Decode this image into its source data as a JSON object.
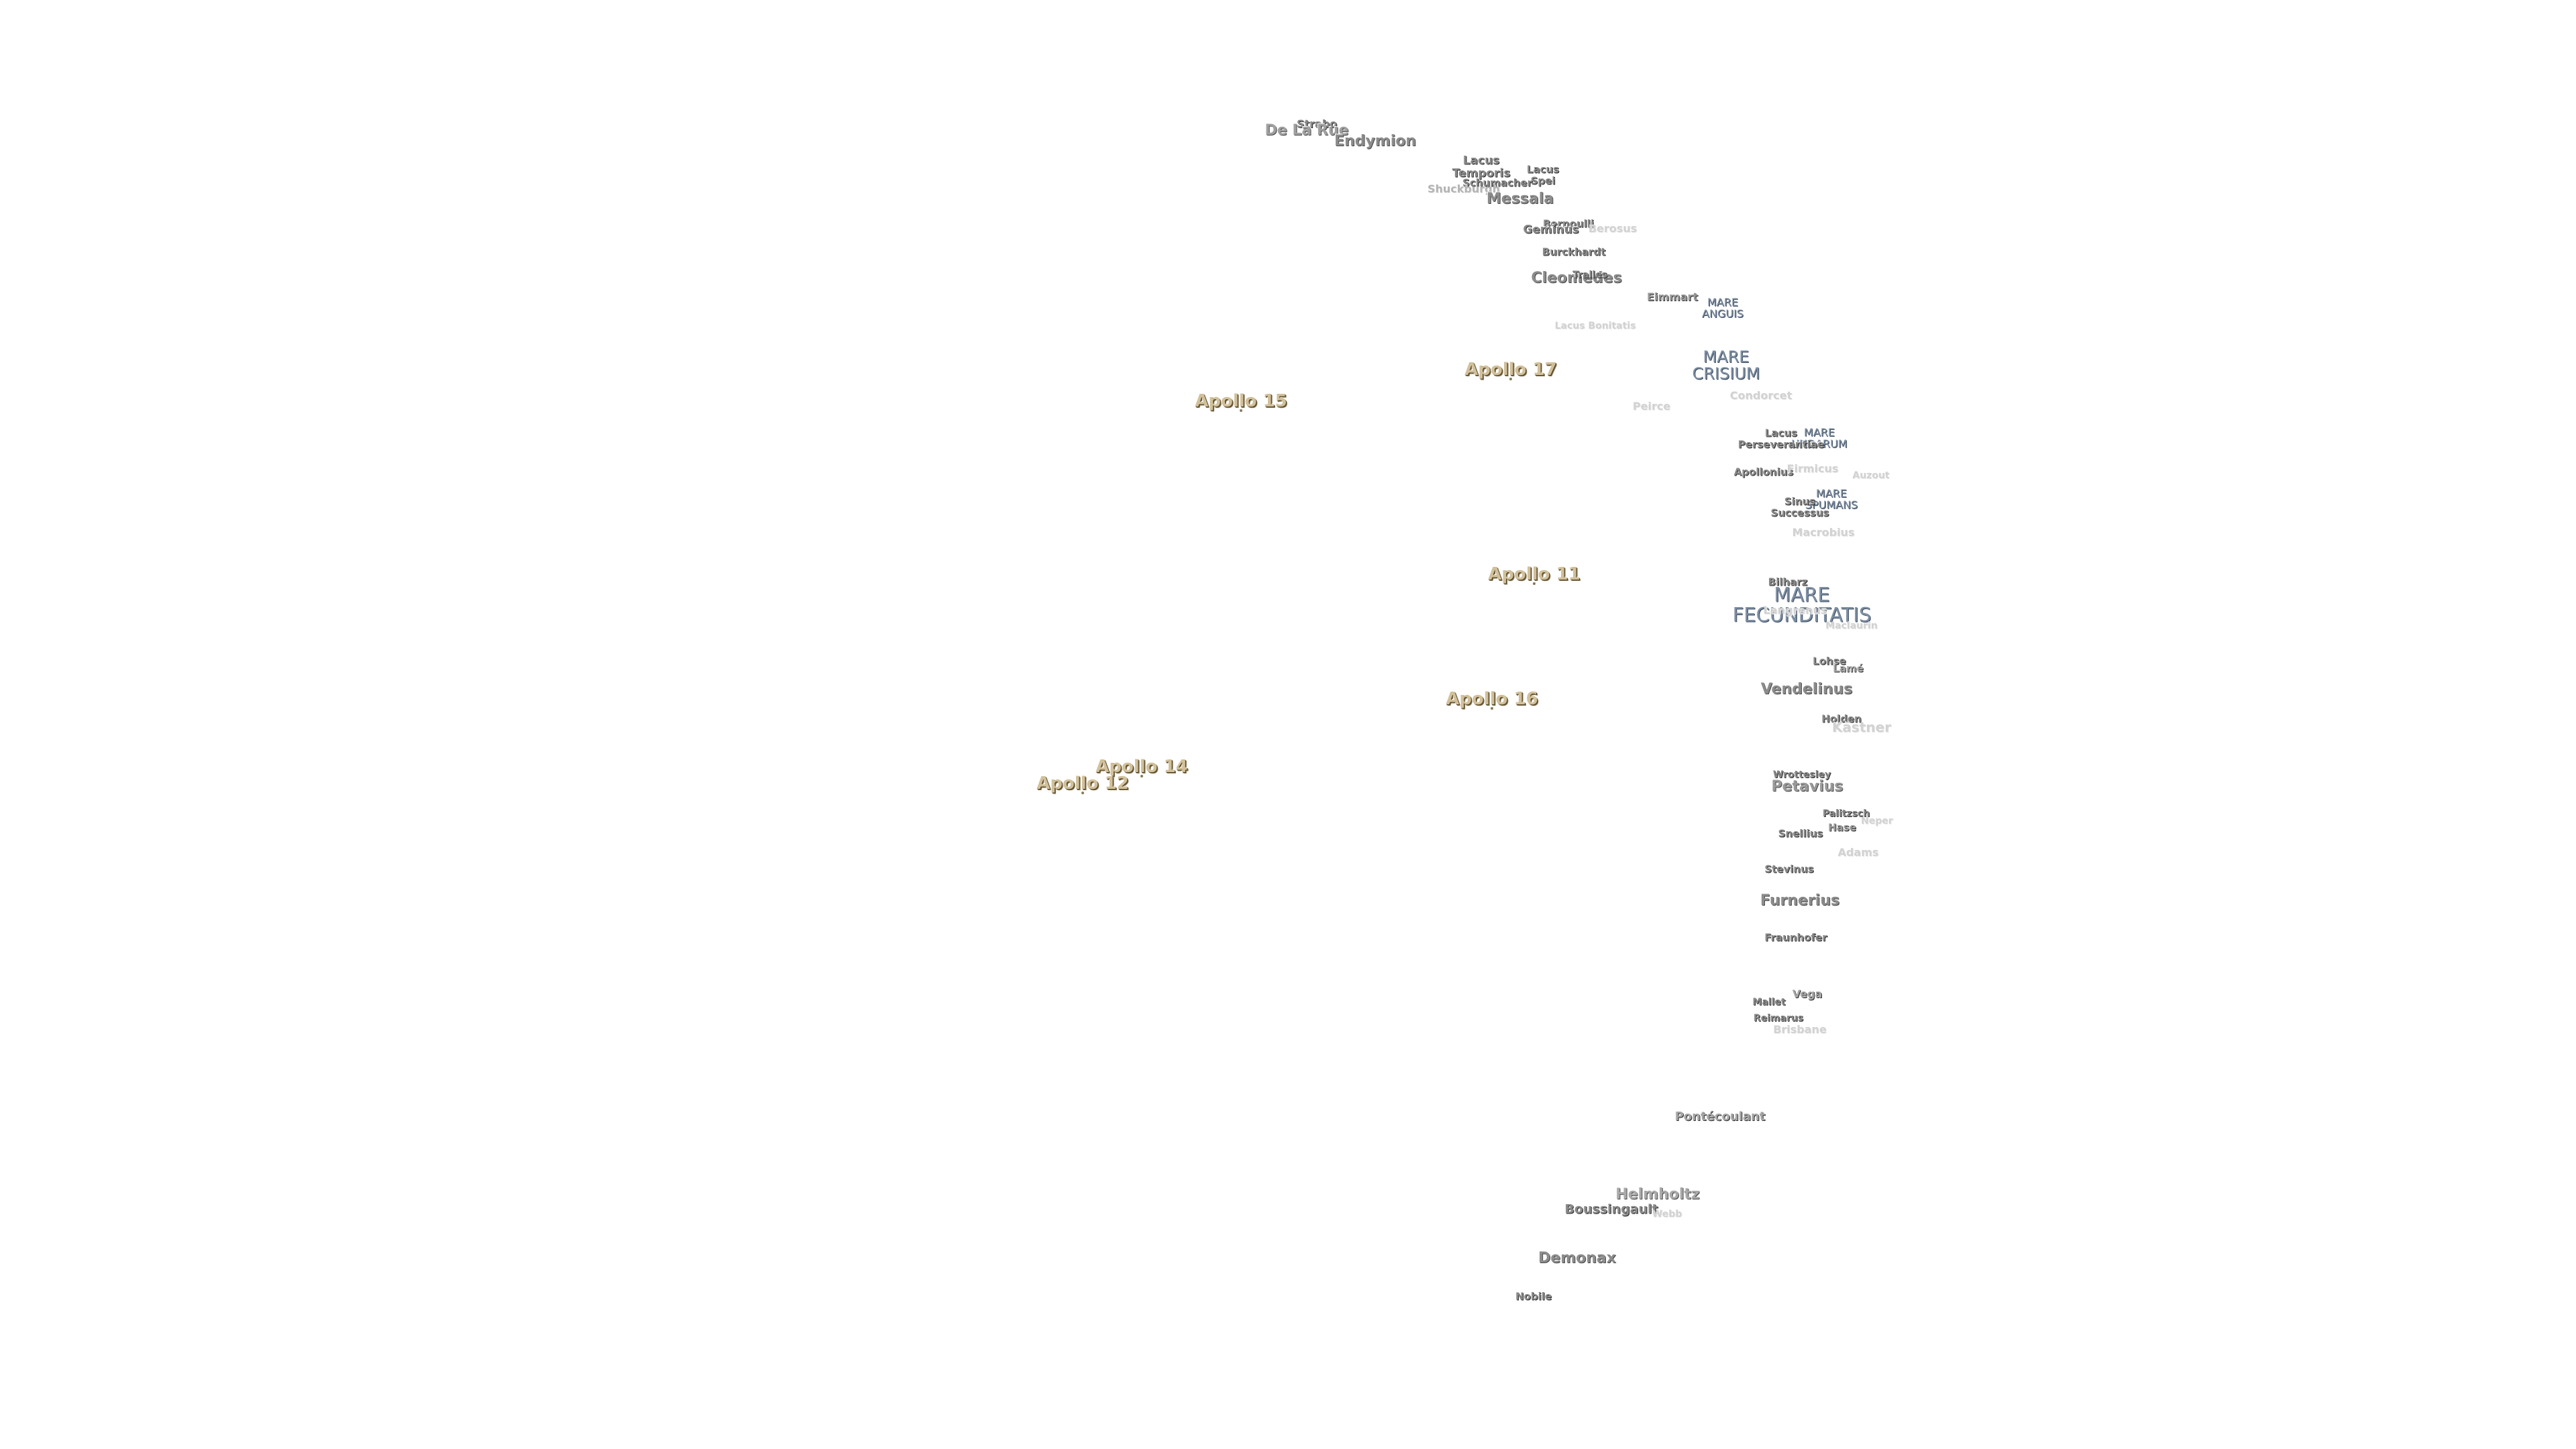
{
  "apollo": [
    {
      "name": "Apollo 15"
    },
    {
      "name": "Apollo 17"
    },
    {
      "name": "Apollo 11"
    },
    {
      "name": "Apollo 16"
    },
    {
      "name": "Apollo 14"
    },
    {
      "name": "Apollo 12"
    }
  ],
  "maria": [
    {
      "name": "MARE\nANGUIS"
    },
    {
      "name": "MARE\nCRISIUM"
    },
    {
      "name": "MARE\nUNDARUM"
    },
    {
      "name": "MARE\nSPUMANS"
    },
    {
      "name": "MARE\nFECUNDITATIS"
    }
  ],
  "lacus_sinus": [
    {
      "name": "Lacus\nTemporis"
    },
    {
      "name": "Lacus\nSpei"
    },
    {
      "name": "Lacus\nPerseverantiae"
    },
    {
      "name": "Sinus\nSuccessus"
    }
  ],
  "craters": [
    {
      "name": "Strabo"
    },
    {
      "name": "De La Rue"
    },
    {
      "name": "Endymion"
    },
    {
      "name": "Schumacher"
    },
    {
      "name": "Shuckburgh"
    },
    {
      "name": "Messala"
    },
    {
      "name": "Bernoulli"
    },
    {
      "name": "Geminus"
    },
    {
      "name": "Berosus"
    },
    {
      "name": "Burckhardt"
    },
    {
      "name": "Cleomedes"
    },
    {
      "name": "Tralles"
    },
    {
      "name": "Eimmart"
    },
    {
      "name": "Peirce"
    },
    {
      "name": "Condorcet"
    },
    {
      "name": "Apollonius"
    },
    {
      "name": "Firmicus"
    },
    {
      "name": "Macrobius"
    },
    {
      "name": "Bilharz"
    },
    {
      "name": "Langrenus"
    },
    {
      "name": "Lohse"
    },
    {
      "name": "Lamé"
    },
    {
      "name": "Vendelinus"
    },
    {
      "name": "Holden"
    },
    {
      "name": "Kästner"
    },
    {
      "name": "Wrottesley"
    },
    {
      "name": "Petavius"
    },
    {
      "name": "Palitzsch"
    },
    {
      "name": "Snellius"
    },
    {
      "name": "Hase"
    },
    {
      "name": "Adams"
    },
    {
      "name": "Stevinus"
    },
    {
      "name": "Furnerius"
    },
    {
      "name": "Fraunhofer"
    },
    {
      "name": "Vega"
    },
    {
      "name": "Mallet"
    },
    {
      "name": "Reimarus"
    },
    {
      "name": "Brisbane"
    },
    {
      "name": "Pontécoulant"
    },
    {
      "name": "Helmholtz"
    },
    {
      "name": "Boussingault"
    },
    {
      "name": "Demonax"
    },
    {
      "name": "Nobile"
    }
  ],
  "faint": [
    {
      "name": "Lacus Bonitatis"
    },
    {
      "name": "Auzout"
    },
    {
      "name": "Maclaurin"
    },
    {
      "name": "Webb"
    },
    {
      "name": "Neper"
    }
  ],
  "colors": {
    "background": "#ffffff",
    "apollo": "#d1c09a",
    "mare": "#7d8ea3",
    "crater": "#8c8c8c"
  }
}
